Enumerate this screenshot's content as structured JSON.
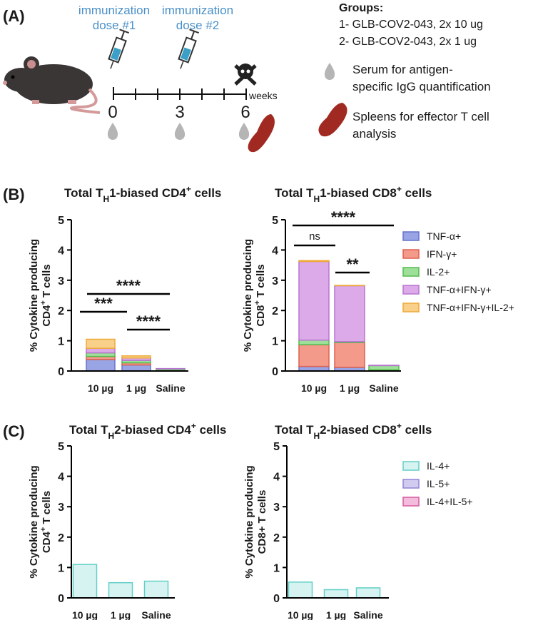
{
  "panels": {
    "A": "(A)",
    "B": "(B)",
    "C": "(C)"
  },
  "diagram": {
    "doses": [
      [
        "immunization",
        "dose #1"
      ],
      [
        "immunization",
        "dose #2"
      ]
    ],
    "weeks": [
      "0",
      "3",
      "6"
    ],
    "weeks_label": "weeks",
    "groups_title": "Groups:",
    "groups": [
      "1- GLB-COV2-043, 2x 10 ug",
      "2- GLB-COV2-043, 2x 1 ug"
    ],
    "serum": [
      "Serum  for antigen-",
      "specific IgG quantification"
    ],
    "spleens": [
      "Spleens for effector T cell",
      "analysis"
    ]
  },
  "chart_data": [
    {
      "type": "bar",
      "stacked": true,
      "legend": false,
      "title": [
        "Total T",
        "H",
        "1-biased CD4",
        "+",
        " cells"
      ],
      "ylabel": {
        "line1": "% Cytokine producing",
        "line2": [
          "CD4",
          "+",
          " T cells"
        ]
      },
      "categories": [
        "10 µg",
        "1 µg",
        "Saline"
      ],
      "ylim": [
        0,
        5
      ],
      "yticks": [
        0,
        1,
        2,
        3,
        4,
        5
      ],
      "series": [
        {
          "name": "TNF-α+",
          "color": "#98a4e4",
          "edgecolor": "#6674cc",
          "values": [
            0.38,
            0.2,
            0.01
          ]
        },
        {
          "name": "IFN-γ+",
          "color": "#f39a8a",
          "edgecolor": "#e0604f",
          "values": [
            0.1,
            0.07,
            0.01
          ]
        },
        {
          "name": "IL-2+",
          "color": "#9ee09a",
          "edgecolor": "#55bb50",
          "values": [
            0.12,
            0.08,
            0.05
          ]
        },
        {
          "name": "TNF-α+IFN-γ+",
          "color": "#dcaae8",
          "edgecolor": "#b874d2",
          "values": [
            0.15,
            0.08,
            0.01
          ]
        },
        {
          "name": "TNF-α+IFN-γ+IL-2+",
          "color": "#f8d08a",
          "edgecolor": "#eeaa3a",
          "values": [
            0.3,
            0.07,
            0
          ]
        }
      ],
      "annotations": [
        "***",
        "****",
        "****"
      ]
    },
    {
      "type": "bar",
      "stacked": true,
      "legend": true,
      "title": [
        "Total T",
        "H",
        "1-biased CD8",
        "+",
        " cells"
      ],
      "ylabel": {
        "line1": "% Cytokine producing",
        "line2": [
          "CD8",
          "+",
          " T cells"
        ]
      },
      "categories": [
        "10 µg",
        "1 µg",
        "Saline"
      ],
      "ylim": [
        0,
        5
      ],
      "yticks": [
        0,
        1,
        2,
        3,
        4,
        5
      ],
      "series": [
        {
          "name": "TNF-α+",
          "color": "#98a4e4",
          "edgecolor": "#6674cc",
          "values": [
            0.15,
            0.12,
            0.02
          ]
        },
        {
          "name": "IFN-γ+",
          "color": "#f39a8a",
          "edgecolor": "#e0604f",
          "values": [
            0.72,
            0.82,
            0.02
          ]
        },
        {
          "name": "IL-2+",
          "color": "#9ee09a",
          "edgecolor": "#55bb50",
          "values": [
            0.15,
            0.03,
            0.14
          ]
        },
        {
          "name": "TNF-α+IFN-γ+",
          "color": "#dcaae8",
          "edgecolor": "#b874d2",
          "values": [
            2.6,
            1.85,
            0.01
          ]
        },
        {
          "name": "TNF-α+IFN-γ+IL-2+",
          "color": "#f8d08a",
          "edgecolor": "#eeaa3a",
          "values": [
            0.03,
            0.01,
            0
          ]
        }
      ],
      "annotations": [
        "****",
        "ns",
        "**"
      ]
    },
    {
      "type": "bar",
      "stacked": true,
      "legend": false,
      "title": [
        "Total T",
        "H",
        "2-biased CD4",
        "+",
        " cells"
      ],
      "ylabel": {
        "line1": "% Cytokine producing",
        "line2": [
          "CD4",
          "+",
          " T cells"
        ]
      },
      "categories": [
        "10 µg",
        "1 µg",
        "Saline"
      ],
      "ylim": [
        0,
        5
      ],
      "yticks": [
        0,
        1,
        2,
        3,
        4,
        5
      ],
      "series": [
        {
          "name": "IL-4+",
          "color": "#d6f3f1",
          "edgecolor": "#62cfc8",
          "values": [
            1.1,
            0.5,
            0.55
          ]
        },
        {
          "name": "IL-5+",
          "color": "#d2cbf0",
          "edgecolor": "#9485d8",
          "values": [
            0,
            0,
            0
          ]
        },
        {
          "name": "IL-4+IL-5+",
          "color": "#f4bcdc",
          "edgecolor": "#d95aa0",
          "values": [
            0,
            0,
            0
          ]
        }
      ],
      "annotations": []
    },
    {
      "type": "bar",
      "stacked": true,
      "legend": true,
      "title": [
        "Total T",
        "H",
        "2-biased CD8",
        "+",
        " cells"
      ],
      "ylabel": {
        "line1": "% Cytokine producing",
        "line2": [
          "CD8+ T cells"
        ]
      },
      "categories": [
        "10 µg",
        "1 µg",
        "Saline"
      ],
      "ylim": [
        0,
        5
      ],
      "yticks": [
        0,
        1,
        2,
        3,
        4,
        5
      ],
      "series": [
        {
          "name": "IL-4+",
          "color": "#d6f3f1",
          "edgecolor": "#62cfc8",
          "values": [
            0.52,
            0.27,
            0.33
          ]
        },
        {
          "name": "IL-5+",
          "color": "#d2cbf0",
          "edgecolor": "#9485d8",
          "values": [
            0,
            0,
            0
          ]
        },
        {
          "name": "IL-4+IL-5+",
          "color": "#f4bcdc",
          "edgecolor": "#d95aa0",
          "values": [
            0,
            0,
            0
          ]
        }
      ],
      "annotations": []
    }
  ]
}
